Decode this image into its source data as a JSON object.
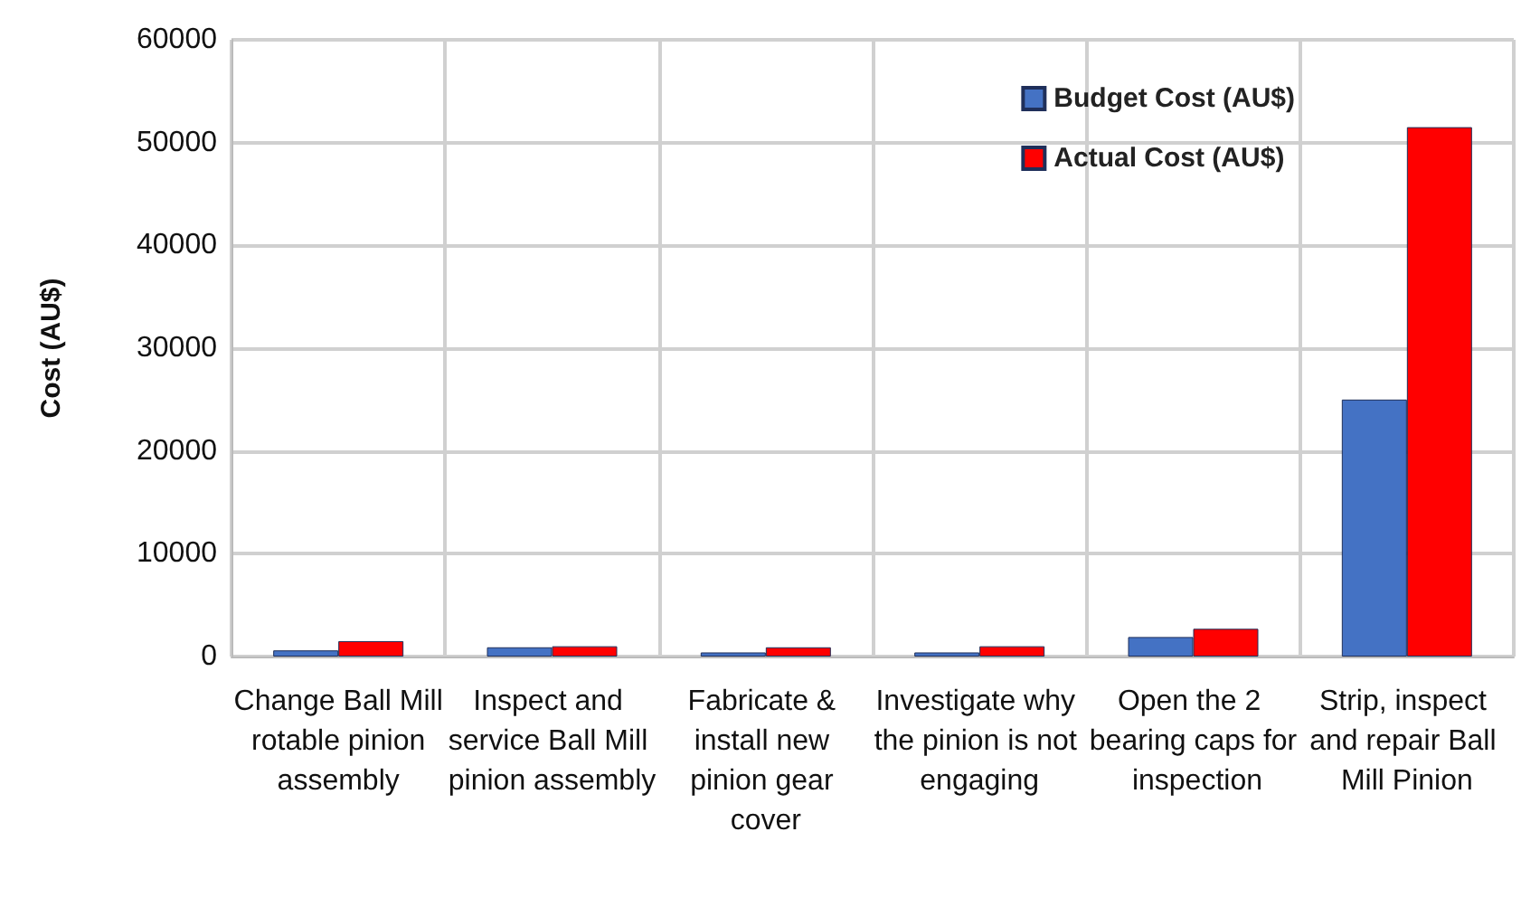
{
  "chart_data": {
    "type": "bar",
    "ylabel": "Cost (AU$)",
    "categories": [
      "Change Ball Mill rotable pinion assembly",
      "Inspect and service Ball Mill pinion assembly",
      "Fabricate & install new pinion gear cover",
      "Investigate why the pinion is not engaging",
      "Open the 2 bearing caps for inspection",
      "Strip, inspect and repair Ball Mill Pinion"
    ],
    "series": [
      {
        "name": "Budget Cost (AU$)",
        "color": "#4472c4",
        "values": [
          600,
          900,
          400,
          400,
          1900,
          25000
        ]
      },
      {
        "name": "Actual Cost (AU$)",
        "color": "#ff0000",
        "values": [
          1500,
          1000,
          900,
          1000,
          2700,
          51500
        ]
      }
    ],
    "ylim": [
      0,
      60000
    ],
    "yticks": [
      0,
      10000,
      20000,
      30000,
      40000,
      50000,
      60000
    ],
    "grid": true,
    "legend": "top right"
  }
}
